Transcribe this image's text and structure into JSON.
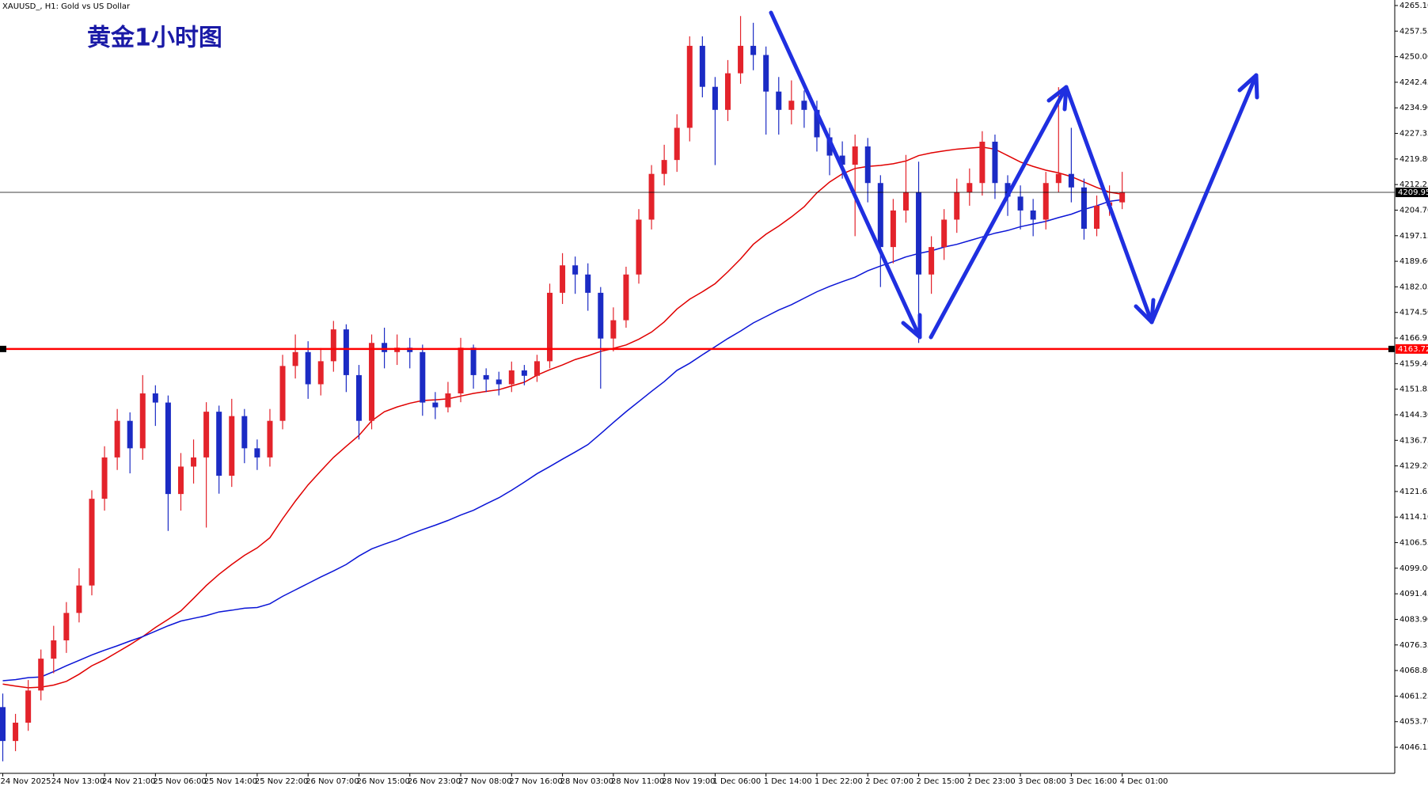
{
  "chart_data": {
    "type": "candlestick",
    "title": "黄金1小时图",
    "subtitle": "XAUUSD_, H1:  Gold vs US Dollar",
    "categories": [
      "24 Nov 2025",
      null,
      null,
      null,
      "24 Nov 13:00",
      null,
      null,
      null,
      "24 Nov 21:00",
      null,
      null,
      null,
      "25 Nov 06:00",
      null,
      null,
      null,
      "25 Nov 14:00",
      null,
      null,
      null,
      "25 Nov 22:00",
      null,
      null,
      null,
      "26 Nov 07:00",
      null,
      null,
      null,
      "26 Nov 15:00",
      null,
      null,
      null,
      "26 Nov 23:00",
      null,
      null,
      null,
      "27 Nov 08:00",
      null,
      null,
      null,
      "27 Nov 16:00",
      null,
      null,
      null,
      "28 Nov 03:00",
      null,
      null,
      null,
      "28 Nov 11:00",
      null,
      null,
      null,
      "28 Nov 19:00",
      null,
      null,
      null,
      "1 Dec 06:00",
      null,
      null,
      null,
      "1 Dec 14:00",
      null,
      null,
      null,
      "1 Dec 22:00",
      null,
      null,
      null,
      "2 Dec 07:00",
      null,
      null,
      null,
      "2 Dec 15:00",
      null,
      null,
      null,
      "2 Dec 23:00",
      null,
      null,
      null,
      "3 Dec 08:00",
      null,
      null,
      null,
      "3 Dec 16:00",
      null,
      null,
      null,
      "4 Dec 01:00"
    ],
    "open": [
      4058,
      4048,
      4053.4,
      4062.9,
      4072.3,
      4077.7,
      4085.8,
      4093.9,
      4119.5,
      4131.7,
      4142.5,
      4134.4,
      4150.6,
      4147.9,
      4120.9,
      4129,
      4131.7,
      4145.2,
      4126.3,
      4143.9,
      4134.4,
      4131.7,
      4142.5,
      4158.7,
      4162.8,
      4153.3,
      4160.1,
      4169.5,
      4156,
      4142.5,
      4165.5,
      4162.8,
      4164.1,
      4162.8,
      4147.9,
      4146.5,
      4150.6,
      4164.1,
      4156,
      4154.7,
      4153.3,
      4157.4,
      4155.8,
      4160.1,
      4180.3,
      4188.4,
      4185.7,
      4180.3,
      4166.8,
      4172.2,
      4185.7,
      4201.9,
      4215.4,
      4219.5,
      4229,
      4253.2,
      4241.1,
      4234.3,
      4245.1,
      4253.2,
      4250.5,
      4239.7,
      4234.3,
      4237,
      4234.3,
      4226.2,
      4220.8,
      4218.1,
      4223.5,
      4212.7,
      4193.8,
      4204.6,
      4210,
      4185.7,
      4193.8,
      4201.9,
      4210,
      4212.7,
      4224.9,
      4212.7,
      4208.7,
      4204.6,
      4201.9,
      4212.7,
      4215.4,
      4211.4,
      4199.2,
      4206,
      4207
    ],
    "high": [
      4062,
      4056,
      4066,
      4075,
      4082,
      4089,
      4099,
      4122,
      4135,
      4146,
      4145,
      4156,
      4153,
      4150,
      4133,
      4137,
      4148,
      4147,
      4149,
      4146,
      4137,
      4146,
      4162,
      4168,
      4166,
      4164,
      4172,
      4171,
      4159,
      4168,
      4170,
      4168,
      4167,
      4165,
      4151,
      4154,
      4167,
      4165,
      4158,
      4157,
      4160,
      4159,
      4162,
      4183,
      4192,
      4191,
      4189,
      4182,
      4176,
      4188,
      4205,
      4218,
      4224,
      4233,
      4256,
      4256,
      4244,
      4249,
      4262,
      4260,
      4253,
      4244,
      4243,
      4240,
      4237,
      4229,
      4225,
      4227,
      4226,
      4215,
      4208,
      4221,
      4219,
      4197,
      4205,
      4214,
      4217,
      4228,
      4227,
      4215,
      4212,
      4208,
      4216,
      4241,
      4229,
      4214,
      4209,
      4212,
      4216
    ],
    "low": [
      4042,
      4045,
      4051,
      4060,
      4068,
      4074,
      4083,
      4091,
      4116,
      4128,
      4127,
      4131,
      4141,
      4110,
      4116,
      4124,
      4111,
      4121,
      4123,
      4130,
      4128,
      4129,
      4140,
      4155,
      4149,
      4150,
      4157,
      4151,
      4137,
      4140,
      4158,
      4159,
      4158,
      4144,
      4143,
      4145,
      4148,
      4152,
      4151,
      4150,
      4151,
      4153,
      4154,
      4158,
      4177,
      4180,
      4175,
      4152,
      4163,
      4170,
      4183,
      4199,
      4212,
      4216,
      4225,
      4238,
      4218,
      4231,
      4242,
      4246,
      4227,
      4227,
      4230,
      4229,
      4222,
      4215,
      4214,
      4197,
      4207,
      4182,
      4189,
      4201,
      4165.5,
      4180,
      4190,
      4198,
      4206,
      4209,
      4208,
      4203,
      4199,
      4197,
      4199,
      4210,
      4207,
      4196,
      4197,
      4203,
      4205
    ],
    "close": [
      4048,
      4053.4,
      4062.9,
      4072.3,
      4077.7,
      4085.8,
      4093.9,
      4119.5,
      4131.7,
      4142.5,
      4134.4,
      4150.6,
      4147.9,
      4120.9,
      4129,
      4131.7,
      4145.2,
      4126.3,
      4143.9,
      4134.4,
      4131.7,
      4142.5,
      4158.7,
      4162.8,
      4153.3,
      4160.1,
      4169.5,
      4156,
      4142.5,
      4165.5,
      4162.8,
      4164.1,
      4162.8,
      4147.9,
      4146.5,
      4150.6,
      4164.1,
      4156,
      4154.7,
      4153.3,
      4157.4,
      4155.8,
      4160.1,
      4180.3,
      4188.4,
      4185.7,
      4180.3,
      4166.8,
      4172.2,
      4185.7,
      4201.9,
      4215.4,
      4219.5,
      4229,
      4253.2,
      4241.1,
      4234.3,
      4245.1,
      4253.2,
      4250.5,
      4239.7,
      4234.3,
      4237,
      4234.3,
      4226.2,
      4220.8,
      4218.1,
      4223.5,
      4212.7,
      4193.8,
      4204.6,
      4210,
      4185.7,
      4193.8,
      4201.9,
      4210,
      4212.7,
      4224.9,
      4212.7,
      4208.7,
      4204.6,
      4201.9,
      4212.7,
      4215.4,
      4211.4,
      4199.2,
      4206,
      4207,
      4209.95
    ],
    "up_color": "#e3232b",
    "down_color": "#1b2bc4",
    "lines": [
      {
        "color": "#e00000",
        "values": [
          4064.8,
          4064.2,
          4063.7,
          4063.9,
          4064.5,
          4065.6,
          4067.7,
          4070.2,
          4072,
          4074.2,
          4076.4,
          4078.8,
          4081.5,
          4083.9,
          4086.4,
          4090.1,
          4093.9,
          4097.2,
          4100.1,
          4102.8,
          4105,
          4108,
          4113.6,
          4118.8,
          4123.6,
          4127.7,
          4131.7,
          4135,
          4138.2,
          4142.5,
          4145.2,
          4146.6,
          4147.7,
          4148.5,
          4148.7,
          4149,
          4149.8,
          4150.6,
          4151.2,
          4151.7,
          4152.8,
          4153.9,
          4156,
          4157.6,
          4159,
          4160.6,
          4161.7,
          4163,
          4163.9,
          4164.9,
          4166.6,
          4168.7,
          4171.7,
          4175.5,
          4178.4,
          4180.6,
          4183,
          4186.5,
          4190.3,
          4194.6,
          4197.6,
          4200,
          4202.7,
          4205.7,
          4209.8,
          4213,
          4215.4,
          4217,
          4217.6,
          4217.9,
          4218.4,
          4219.2,
          4220.8,
          4221.6,
          4222.2,
          4222.7,
          4223,
          4223.3,
          4222.7,
          4220.8,
          4218.9,
          4217.6,
          4216.5,
          4215.7,
          4214.6,
          4213,
          4211.4,
          4210,
          4209.4
        ]
      },
      {
        "color": "#0a14d6",
        "values": [
          4065.8,
          4066.1,
          4066.7,
          4066.9,
          4068.5,
          4070.2,
          4071.8,
          4073.4,
          4074.8,
          4076.1,
          4077.5,
          4078.8,
          4080.4,
          4082,
          4083.4,
          4084.2,
          4085,
          4086.1,
          4086.6,
          4087.2,
          4087.4,
          4088.5,
          4090.7,
          4092.6,
          4094.5,
          4096.4,
          4098.2,
          4100.1,
          4102.6,
          4104.7,
          4106.1,
          4107.4,
          4109,
          4110.4,
          4111.7,
          4113.1,
          4114.7,
          4116.1,
          4118,
          4119.8,
          4122,
          4124.4,
          4126.9,
          4129,
          4131.2,
          4133.3,
          4135.5,
          4138.7,
          4142,
          4145.2,
          4148.2,
          4151.2,
          4154.1,
          4157.4,
          4159.5,
          4162,
          4164.4,
          4166.8,
          4169,
          4171.4,
          4173.3,
          4175.2,
          4176.8,
          4178.7,
          4180.6,
          4182.2,
          4183.6,
          4184.9,
          4186.8,
          4188.2,
          4189.5,
          4190.9,
          4191.9,
          4192.7,
          4193.8,
          4194.6,
          4195.7,
          4196.8,
          4197.9,
          4198.7,
          4199.8,
          4200.6,
          4201.4,
          4202.5,
          4203.5,
          4204.9,
          4206,
          4207.3,
          4207.8
        ]
      }
    ],
    "hlines": [
      {
        "value": 4163.72,
        "color": "#ff0000"
      },
      {
        "value": 4209.95,
        "color": "#000000"
      }
    ],
    "ylim": [
      4038.45,
      4266.73
    ],
    "yticks": [
      {
        "value": 4265.1,
        "label": "4265.10"
      },
      {
        "value": 4257.55,
        "label": "4257.55"
      },
      {
        "value": 4250,
        "label": "4250.00"
      },
      {
        "value": 4242.45,
        "label": "4242.45"
      },
      {
        "value": 4234.9,
        "label": "4234.90"
      },
      {
        "value": 4227.35,
        "label": "4227.35"
      },
      {
        "value": 4219.8,
        "label": "4219.80"
      },
      {
        "value": 4212.25,
        "label": "4212.25"
      },
      {
        "value": 4204.7,
        "label": "4204.70"
      },
      {
        "value": 4197.15,
        "label": "4197.15"
      },
      {
        "value": 4189.6,
        "label": "4189.60"
      },
      {
        "value": 4182.05,
        "label": "4182.05"
      },
      {
        "value": 4174.5,
        "label": "4174.50"
      },
      {
        "value": 4166.95,
        "label": "4166.95"
      },
      {
        "value": 4159.4,
        "label": "4159.40"
      },
      {
        "value": 4151.85,
        "label": "4151.85"
      },
      {
        "value": 4144.3,
        "label": "4144.30"
      },
      {
        "value": 4136.75,
        "label": "4136.75"
      },
      {
        "value": 4129.2,
        "label": "4129.20"
      },
      {
        "value": 4121.65,
        "label": "4121.65"
      },
      {
        "value": 4114.1,
        "label": "4114.10"
      },
      {
        "value": 4106.55,
        "label": "4106.55"
      },
      {
        "value": 4099,
        "label": "4099.00"
      },
      {
        "value": 4091.45,
        "label": "4091.45"
      },
      {
        "value": 4083.9,
        "label": "4083.90"
      },
      {
        "value": 4076.35,
        "label": "4076.35"
      },
      {
        "value": 4068.8,
        "label": "4068.80"
      },
      {
        "value": 4061.25,
        "label": "4061.25"
      },
      {
        "value": 4053.7,
        "label": "4053.70"
      },
      {
        "value": 4046.15,
        "label": "4046.15"
      }
    ],
    "grid": false
  }
}
